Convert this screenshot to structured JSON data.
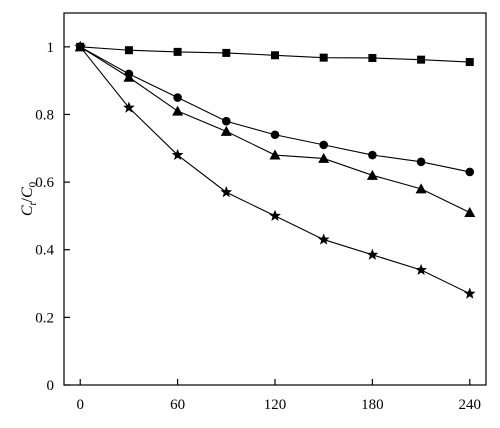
{
  "chart_data": {
    "type": "line",
    "title": "",
    "xlabel": "",
    "ylabel": "C_t/C_0",
    "ylabel_parts": {
      "main": "C",
      "sub1": "t",
      "slash": "/",
      "main2": "C",
      "sub2": "0"
    },
    "xlim": [
      -10,
      250
    ],
    "ylim": [
      0,
      1.1
    ],
    "xticks": [
      0,
      60,
      120,
      180,
      240
    ],
    "yticks": [
      0,
      0.2,
      0.4,
      0.6,
      0.8,
      1
    ],
    "ytick_labels": [
      "0",
      "0.2",
      "0.4",
      "0.6",
      "0.8",
      "1"
    ],
    "grid": false,
    "series": [
      {
        "marker": "square",
        "x": [
          0,
          30,
          60,
          90,
          120,
          150,
          180,
          210,
          240
        ],
        "y": [
          1.0,
          0.99,
          0.985,
          0.982,
          0.975,
          0.968,
          0.967,
          0.962,
          0.955
        ]
      },
      {
        "marker": "circle",
        "x": [
          0,
          30,
          60,
          90,
          120,
          150,
          180,
          210,
          240
        ],
        "y": [
          1.0,
          0.92,
          0.85,
          0.78,
          0.74,
          0.71,
          0.68,
          0.66,
          0.63
        ]
      },
      {
        "marker": "triangle",
        "x": [
          0,
          30,
          60,
          90,
          120,
          150,
          180,
          210,
          240
        ],
        "y": [
          1.0,
          0.91,
          0.81,
          0.75,
          0.68,
          0.67,
          0.62,
          0.58,
          0.51
        ]
      },
      {
        "marker": "star",
        "x": [
          0,
          30,
          60,
          90,
          120,
          150,
          180,
          210,
          240
        ],
        "y": [
          1.0,
          0.82,
          0.68,
          0.57,
          0.5,
          0.43,
          0.385,
          0.34,
          0.27
        ]
      }
    ]
  }
}
